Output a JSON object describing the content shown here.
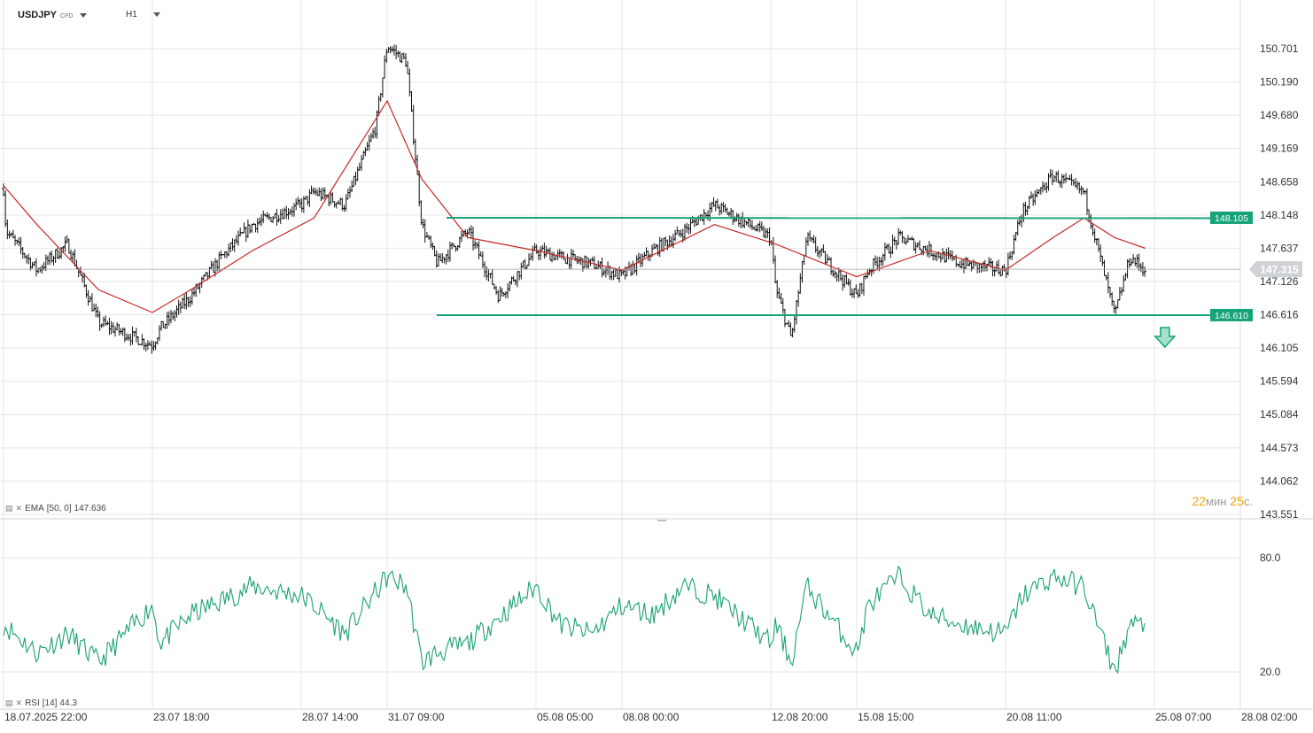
{
  "header": {
    "symbol": "USDJPY",
    "instrument_type": "CFD",
    "timeframe": "H1"
  },
  "indicators": {
    "ema": {
      "label": "EMA",
      "params": "[50, 0]",
      "value": "147.636"
    },
    "rsi": {
      "label": "RSI",
      "params": "[14]",
      "value": "44.3"
    }
  },
  "timer": {
    "minutes": "22",
    "minutes_unit": "мин",
    "seconds": "25",
    "seconds_unit": "с."
  },
  "colors": {
    "candles": "#111111",
    "ema": "#c62828",
    "levels": "#17a37a",
    "rsi": "#1aa36f",
    "grid": "#e6e6e6",
    "current_price_badge": "#cfd3d6"
  },
  "chart_data": [
    {
      "type": "candlestick",
      "title": "USDJPY",
      "timeframe": "H1",
      "y_ticks": [
        "150.701",
        "150.190",
        "149.680",
        "149.169",
        "148.658",
        "148.148",
        "147.637",
        "147.126",
        "146.616",
        "146.105",
        "145.594",
        "145.084",
        "144.573",
        "144.062",
        "143.551"
      ],
      "ylim": [
        143.551,
        150.701
      ],
      "x_ticks": [
        "18.07.2025  22:00",
        "23.07  18:00",
        "28.07  14:00",
        "31.07  09:00",
        "05.08  05:00",
        "08.08  00:00",
        "12.08  20:00",
        "15.08  15:00",
        "20.08  11:00",
        "25.08  07:00",
        "28.08  02:00"
      ],
      "grid": true,
      "current_price": "147.315",
      "horizontal_levels": [
        {
          "value": 148.105,
          "label": "148.105"
        },
        {
          "value": 146.61,
          "label": "146.610"
        }
      ],
      "annotations": [
        {
          "type": "arrow-down",
          "near": "25.08"
        }
      ],
      "close_path": {
        "x": [
          "18.07 22:00",
          "19.07",
          "20.07",
          "21.07",
          "22.07",
          "23.07 18:00",
          "24.07",
          "25.07",
          "26.07",
          "27.07",
          "28.07 14:00",
          "29.07",
          "30.07",
          "31.07",
          "31.07 09:00",
          "01.08",
          "01.08 12:00",
          "02.08",
          "03.08",
          "04.08",
          "05.08 05:00",
          "06.08",
          "07.08",
          "08.08 00:00",
          "09.08",
          "10.08",
          "11.08",
          "12.08 20:00",
          "13.08",
          "13.08 12:00",
          "14.08",
          "15.08 15:00",
          "16.08",
          "17.08",
          "18.08",
          "19.08",
          "20.08 11:00",
          "21.08",
          "22.08",
          "23.08",
          "24.08",
          "24.08 12:00",
          "25.08"
        ],
        "y": [
          148.55,
          147.9,
          147.3,
          147.7,
          146.5,
          146.15,
          146.4,
          146.9,
          147.5,
          148.0,
          148.3,
          148.5,
          148.3,
          149.5,
          150.75,
          150.5,
          148.0,
          147.4,
          147.9,
          146.9,
          147.6,
          147.5,
          147.4,
          147.2,
          147.6,
          147.9,
          148.3,
          147.8,
          147.0,
          146.25,
          147.8,
          146.9,
          147.3,
          147.8,
          147.6,
          147.4,
          147.3,
          148.2,
          148.75,
          148.5,
          146.6,
          147.5,
          147.3
        ]
      },
      "ema_path": {
        "x": [
          "18.07 22:00",
          "20.07",
          "22.07",
          "23.07 18:00",
          "25.07",
          "27.07",
          "29.07",
          "31.07 09:00",
          "01.08 12:00",
          "03.08",
          "05.08 05:00",
          "08.08 00:00",
          "11.08",
          "13.08",
          "15.08 15:00",
          "18.08",
          "20.08 11:00",
          "22.08",
          "23.08",
          "24.08",
          "25.08"
        ],
        "y": [
          148.6,
          148.0,
          147.0,
          146.65,
          147.0,
          147.6,
          148.1,
          149.9,
          148.7,
          147.8,
          147.6,
          147.3,
          148.0,
          147.7,
          147.2,
          147.6,
          147.3,
          147.8,
          148.1,
          147.8,
          147.636
        ]
      }
    },
    {
      "type": "line",
      "title": "RSI [14]",
      "y_ticks": [
        "80.0",
        "20.0"
      ],
      "current_value": "44.3",
      "series": [
        {
          "name": "RSI",
          "x": [
            "18.07 22:00",
            "20.07",
            "21.07",
            "22.07",
            "23.07 18:00",
            "24.07",
            "25.07",
            "27.07",
            "28.07 14:00",
            "29.07",
            "30.07",
            "31.07 09:00",
            "01.08",
            "01.08 12:00",
            "02.08",
            "03.08",
            "05.08 05:00",
            "06.08",
            "07.08",
            "08.08 00:00",
            "09.08",
            "10.08",
            "11.08",
            "12.08 20:00",
            "13.08",
            "13.08 12:00",
            "14.08",
            "15.08 15:00",
            "16.08",
            "17.08",
            "18.08",
            "19.08",
            "20.08 11:00",
            "21.08",
            "22.08",
            "23.08",
            "24.08",
            "24.08 12:00",
            "25.08"
          ],
          "y": [
            45,
            30,
            40,
            25,
            55,
            35,
            50,
            65,
            60,
            55,
            40,
            70,
            65,
            25,
            30,
            35,
            65,
            45,
            40,
            55,
            50,
            65,
            60,
            35,
            45,
            25,
            65,
            30,
            55,
            70,
            50,
            45,
            40,
            60,
            70,
            65,
            20,
            45,
            44.3
          ]
        }
      ]
    }
  ]
}
